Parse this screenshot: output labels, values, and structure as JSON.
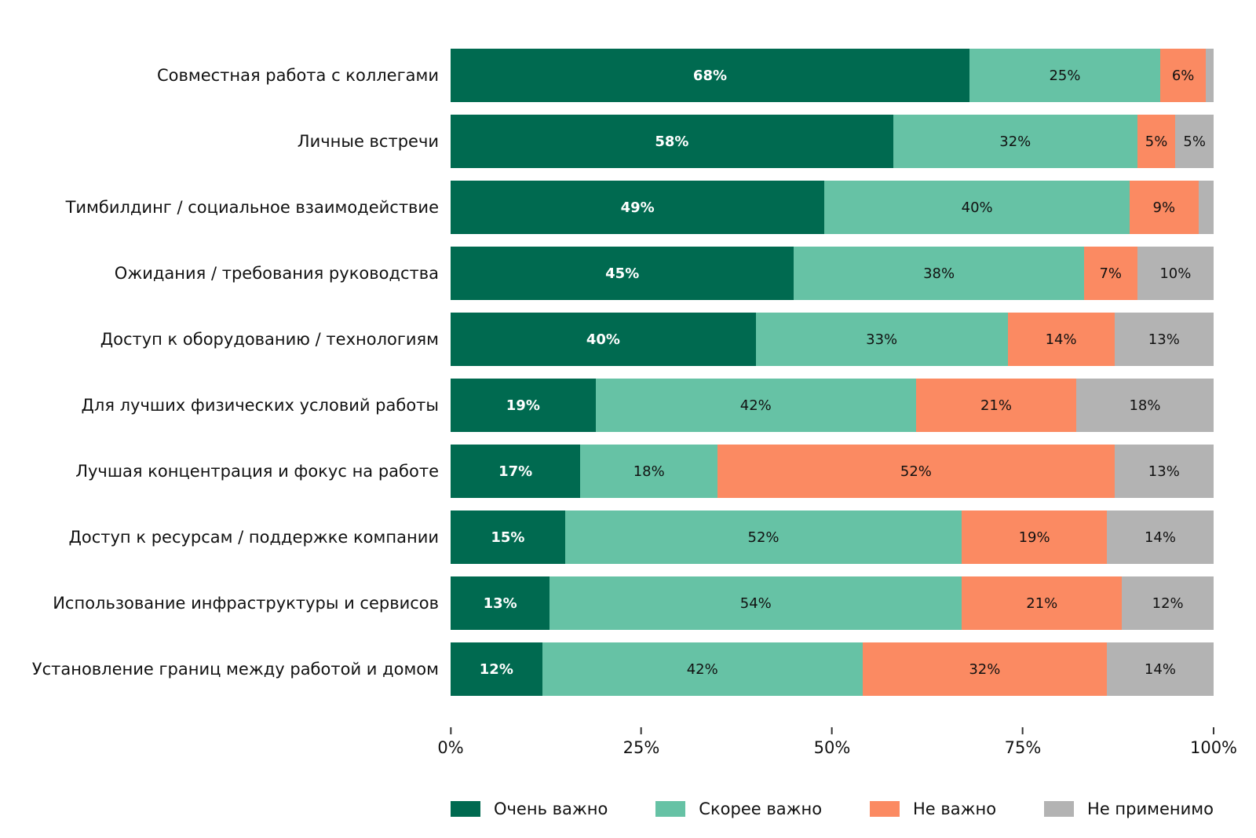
{
  "chart_data": {
    "type": "bar",
    "variant": "horizontal_stacked",
    "unit": "%",
    "title": "",
    "xlabel": "",
    "ylabel": "",
    "xlim": [
      0,
      100
    ],
    "grid": false,
    "legend_position": "bottom",
    "label_min_visible": 4,
    "categories": [
      "Совместная работа с коллегами",
      "Личные встречи",
      "Тимбилдинг / социальное взаимодействие",
      "Ожидания / требования руководства",
      "Доступ к оборудованию / технологиям",
      "Для лучших физических условий работы",
      "Лучшая концентрация и фокус на работе",
      "Доступ к ресурсам / поддержке компании",
      "Использование инфраструктуры и сервисов",
      "Установление границ между работой и домом"
    ],
    "series": [
      {
        "name": "Очень важно",
        "color": "#006A50",
        "values": [
          68,
          58,
          49,
          45,
          40,
          19,
          17,
          15,
          13,
          12
        ]
      },
      {
        "name": "Скорее важно",
        "color": "#66C2A5",
        "values": [
          25,
          32,
          40,
          38,
          33,
          42,
          18,
          52,
          54,
          42
        ]
      },
      {
        "name": "Не важно",
        "color": "#FB8A62",
        "values": [
          6,
          5,
          9,
          7,
          14,
          21,
          52,
          19,
          21,
          32
        ]
      },
      {
        "name": "Не применимо",
        "color": "#B3B3B3",
        "values": [
          1,
          5,
          2,
          10,
          13,
          18,
          13,
          14,
          12,
          14
        ]
      }
    ],
    "xticks": [
      "0%",
      "25%",
      "50%",
      "75%",
      "100%"
    ]
  }
}
